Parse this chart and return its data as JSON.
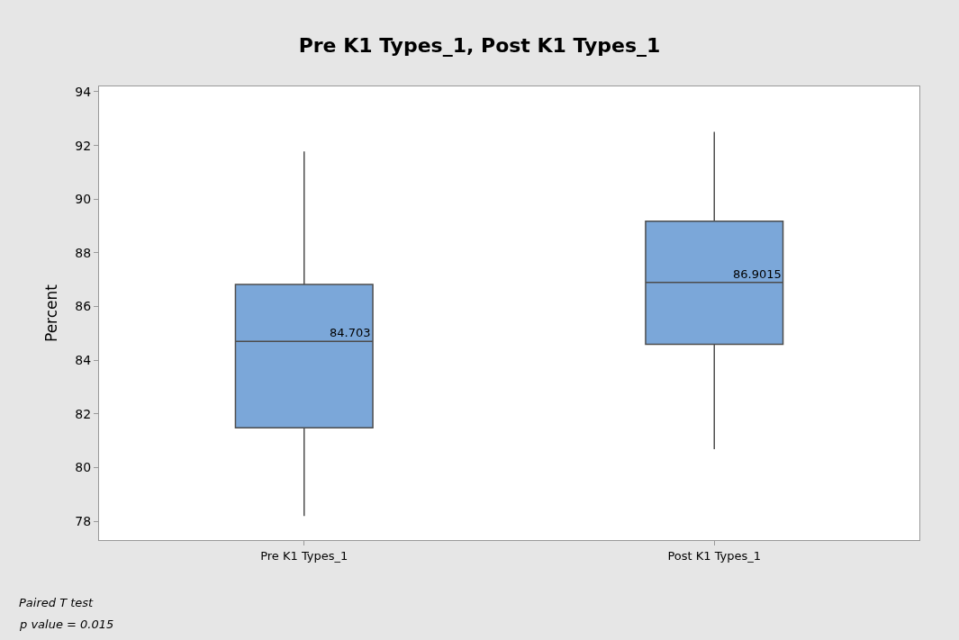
{
  "chart_data": {
    "type": "box",
    "title": "Pre K1 Types_1, Post K1 Types_1",
    "ylabel": "Percent",
    "categories": [
      "Pre K1 Types_1",
      "Post K1 Types_1"
    ],
    "boxes": [
      {
        "low": 78.2,
        "q1": 81.48,
        "median": 84.703,
        "q3": 86.82,
        "high": 91.78
      },
      {
        "low": 80.69,
        "q1": 84.59,
        "median": 86.9015,
        "q3": 89.18,
        "high": 92.51
      }
    ],
    "color": "#7ba7d9",
    "value_labels": [
      "84.703",
      "86.9015"
    ],
    "ylim": [
      77.3,
      94.2
    ],
    "yticks": [
      78,
      80,
      82,
      84,
      86,
      88,
      90,
      92,
      94
    ],
    "annotations": [
      "Paired T test",
      "p value = 0.015"
    ]
  }
}
